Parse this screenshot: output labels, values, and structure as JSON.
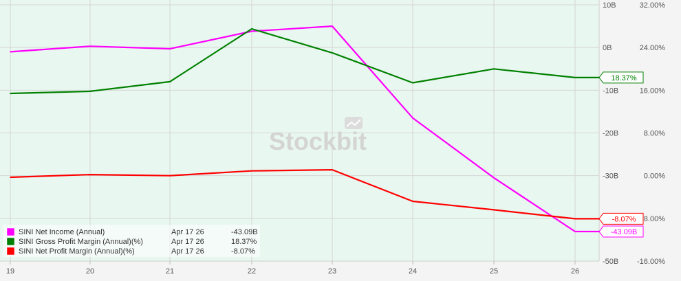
{
  "chart_data": {
    "type": "line",
    "x": [
      "19",
      "20",
      "21",
      "22",
      "23",
      "24",
      "25",
      "26",
      ""
    ],
    "left_axis": {
      "ticks": [
        "10B",
        "0B",
        "-10B",
        "-20B",
        "-30B",
        "-40B",
        "-50B"
      ],
      "ylim": [
        -50,
        10
      ],
      "unit": "B"
    },
    "right_axis": {
      "ticks": [
        "32.00%",
        "24.00%",
        "16.00%",
        "8.00%",
        "0.00%",
        "-8.00%",
        "-16.00%"
      ],
      "ylim": [
        -16,
        32
      ],
      "unit": "%"
    },
    "series": [
      {
        "name": "SINI Net Income (Annual)",
        "axis": "left",
        "color": "#ff00ff",
        "values": [
          -1.0,
          0.3,
          -0.3,
          3.8,
          5.0,
          -16.5,
          -30.5,
          -43.09,
          -43.09
        ],
        "legend_date": "Apr 17 26",
        "legend_value": "-43.09B",
        "end_label": "-43.09B"
      },
      {
        "name": "SINI Gross Profit Margin (Annual)(%)",
        "axis": "right",
        "color": "#008000",
        "values": [
          15.4,
          15.8,
          17.6,
          27.5,
          23.0,
          17.4,
          20.0,
          18.37,
          18.37
        ],
        "legend_date": "Apr 17 26",
        "legend_value": "18.37%",
        "end_label": "18.37%"
      },
      {
        "name": "SINI Net Profit Margin (Annual)(%)",
        "axis": "right",
        "color": "#ff0000",
        "values": [
          -0.3,
          0.2,
          0.0,
          0.9,
          1.1,
          -4.8,
          -6.4,
          -8.07,
          -8.07
        ],
        "legend_date": "Apr 17 26",
        "legend_value": "-8.07%",
        "end_label": "-8.07%"
      }
    ],
    "grid": true,
    "legend_position": "bottom-left",
    "watermark": "Stockbit",
    "colors": {
      "plot_background": "#e8f7ef",
      "page_background": "#f4f4f4",
      "grid": "#d6d6d6",
      "axis_text": "#555555"
    }
  }
}
